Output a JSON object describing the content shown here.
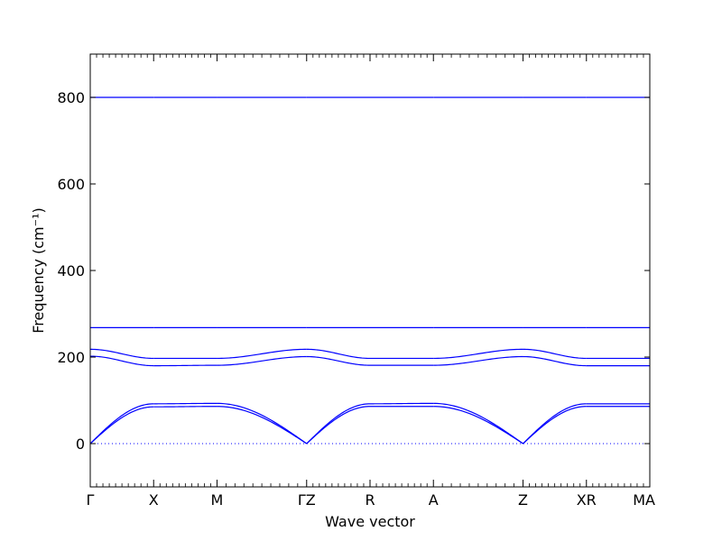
{
  "chart_data": {
    "type": "line",
    "title": "",
    "xlabel": "Wave vector",
    "ylabel": "Frequency (cm⁻¹)",
    "ylim": [
      -100,
      900
    ],
    "yticks": [
      0,
      200,
      400,
      600,
      800
    ],
    "grid": false,
    "legend": "none",
    "colors": {
      "bands": "#0000ff",
      "zero_line": "#0000ff",
      "axes": "#000000"
    },
    "kpoints": [
      {
        "label": "Γ",
        "x": 0
      },
      {
        "label": "X",
        "x": 1
      },
      {
        "label": "M",
        "x": 2
      },
      {
        "label": "ΓZ",
        "x": 3.414
      },
      {
        "label": "R",
        "x": 4.414
      },
      {
        "label": "A",
        "x": 5.414
      },
      {
        "label": "Z",
        "x": 6.828
      },
      {
        "label": "XR",
        "x": 7.828
      },
      {
        "label": "MA",
        "x": 8.828
      }
    ],
    "xlim": [
      0,
      8.828
    ],
    "segments": [
      {
        "from": "Γ",
        "to": "X",
        "x0": 0,
        "x1": 1,
        "bands": [
          [
            0,
            85
          ],
          [
            0,
            92
          ],
          [
            218,
            197
          ],
          [
            202,
            180
          ],
          [
            268,
            268
          ],
          [
            800,
            800
          ]
        ]
      },
      {
        "from": "X",
        "to": "M",
        "x0": 1,
        "x1": 2,
        "bands": [
          [
            85,
            86
          ],
          [
            92,
            93
          ],
          [
            197,
            197
          ],
          [
            180,
            181
          ],
          [
            268,
            268
          ],
          [
            800,
            800
          ]
        ]
      },
      {
        "from": "M",
        "to": "Γ",
        "x0": 2,
        "x1": 3.414,
        "bands": [
          [
            86,
            0
          ],
          [
            93,
            0
          ],
          [
            197,
            218
          ],
          [
            181,
            201
          ],
          [
            268,
            268
          ],
          [
            800,
            800
          ]
        ]
      },
      {
        "from": "Z",
        "to": "R",
        "x0": 3.414,
        "x1": 4.414,
        "bands": [
          [
            0,
            86
          ],
          [
            0,
            92
          ],
          [
            218,
            197
          ],
          [
            201,
            181
          ],
          [
            268,
            268
          ],
          [
            800,
            800
          ]
        ]
      },
      {
        "from": "R",
        "to": "A",
        "x0": 4.414,
        "x1": 5.414,
        "bands": [
          [
            86,
            86
          ],
          [
            92,
            93
          ],
          [
            197,
            197
          ],
          [
            181,
            181
          ],
          [
            268,
            268
          ],
          [
            800,
            800
          ]
        ]
      },
      {
        "from": "A",
        "to": "Z",
        "x0": 5.414,
        "x1": 6.828,
        "bands": [
          [
            86,
            0
          ],
          [
            93,
            0
          ],
          [
            197,
            218
          ],
          [
            181,
            201
          ],
          [
            268,
            268
          ],
          [
            800,
            800
          ]
        ]
      },
      {
        "from": "Z",
        "to": "X",
        "x0": 6.828,
        "x1": 7.828,
        "bands": [
          [
            0,
            86
          ],
          [
            0,
            92
          ],
          [
            218,
            197
          ],
          [
            201,
            180
          ],
          [
            268,
            268
          ],
          [
            800,
            800
          ]
        ]
      },
      {
        "from": "R",
        "to": "M",
        "x0": 7.828,
        "x1": 8.828,
        "bands": [
          [
            86,
            86
          ],
          [
            92,
            92
          ],
          [
            197,
            197
          ],
          [
            180,
            180
          ],
          [
            268,
            268
          ],
          [
            800,
            800
          ]
        ]
      }
    ]
  }
}
